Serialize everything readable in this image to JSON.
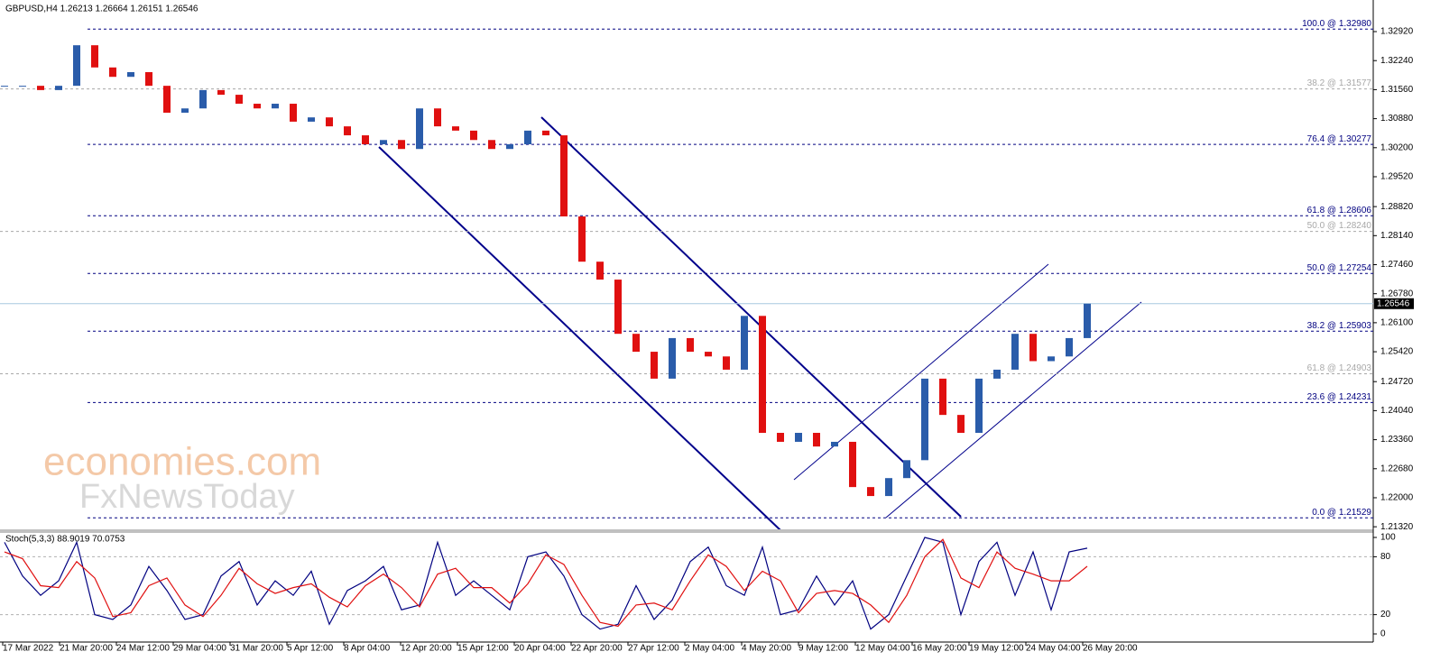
{
  "chart_data": {
    "type": "candlestick",
    "title": "GBPUSD,H4  1.26213 1.26664 1.26151 1.26546",
    "values": [
      1.3165,
      1.3165,
      1.3155,
      1.3165,
      1.326,
      1.3208,
      1.3186,
      1.3197,
      1.3165,
      1.3102,
      1.3112,
      1.3155,
      1.3144,
      1.3123,
      1.3112,
      1.3123,
      1.3081,
      1.3091,
      1.307,
      1.3049,
      1.3028,
      1.3038,
      1.3017,
      1.3112,
      1.307,
      1.306,
      1.3038,
      1.3017,
      1.3028,
      1.306,
      1.3049,
      1.2859,
      1.2753,
      1.2711,
      1.2584,
      1.2542,
      1.2479,
      1.2574,
      1.2542,
      1.2531,
      1.25,
      1.2626,
      1.2352,
      1.2331,
      1.2352,
      1.232,
      1.2331,
      1.2225,
      1.2204,
      1.2246,
      1.2288,
      1.2479,
      1.2394,
      1.2352,
      1.2479,
      1.25,
      1.2584,
      1.252,
      1.2531,
      1.2574,
      1.26546
    ],
    "up_color": "#2a5caa",
    "down_color": "#e01010",
    "ylim": [
      1.2126,
      1.3366
    ],
    "yticks": [
      {
        "value": 1.3292,
        "label": "1.32920"
      },
      {
        "value": 1.3224,
        "label": "1.32240"
      },
      {
        "value": 1.3156,
        "label": "1.31560"
      },
      {
        "value": 1.3088,
        "label": "1.30880"
      },
      {
        "value": 1.302,
        "label": "1.30200"
      },
      {
        "value": 1.2952,
        "label": "1.29520"
      },
      {
        "value": 1.2882,
        "label": "1.28820"
      },
      {
        "value": 1.2814,
        "label": "1.28140"
      },
      {
        "value": 1.2746,
        "label": "1.27460"
      },
      {
        "value": 1.2678,
        "label": "1.26780"
      },
      {
        "value": 1.261,
        "label": "1.26100"
      },
      {
        "value": 1.2542,
        "label": "1.25420"
      },
      {
        "value": 1.2472,
        "label": "1.24720"
      },
      {
        "value": 1.2404,
        "label": "1.24040"
      },
      {
        "value": 1.2336,
        "label": "1.23360"
      },
      {
        "value": 1.2268,
        "label": "1.22680"
      },
      {
        "value": 1.22,
        "label": "1.22000"
      },
      {
        "value": 1.2132,
        "label": "1.21320"
      }
    ],
    "current_price": 1.26546,
    "levels": [
      {
        "value": 1.3298,
        "label": "100.0 @ 1.32980",
        "color": "#000080"
      },
      {
        "value": 1.31577,
        "label": "38.2 @ 1.31577",
        "color": "#a8a8a8"
      },
      {
        "value": 1.30277,
        "label": "76.4 @ 1.30277",
        "color": "#000080"
      },
      {
        "value": 1.28606,
        "label": "61.8 @ 1.28606",
        "color": "#000080"
      },
      {
        "value": 1.2824,
        "label": "50.0 @ 1.28240",
        "color": "#a8a8a8"
      },
      {
        "value": 1.27254,
        "label": "50.0 @ 1.27254",
        "color": "#000080"
      },
      {
        "value": 1.25903,
        "label": "38.2 @ 1.25903",
        "color": "#000080"
      },
      {
        "value": 1.24903,
        "label": "61.8 @ 1.24903",
        "color": "#a8a8a8"
      },
      {
        "value": 1.24231,
        "label": "23.6 @ 1.24231",
        "color": "#000080"
      },
      {
        "value": 1.21529,
        "label": "0.0 @ 1.21529",
        "color": "#000080"
      }
    ],
    "x_labels": [
      "17 Mar 2022",
      "21 Mar 20:00",
      "24 Mar 12:00",
      "29 Mar 04:00",
      "31 Mar 20:00",
      "5 Apr 12:00",
      "8 Apr 04:00",
      "12 Apr 20:00",
      "15 Apr 12:00",
      "20 Apr 04:00",
      "22 Apr 20:00",
      "27 Apr 12:00",
      "2 May 04:00",
      "4 May 20:00",
      "9 May 12:00",
      "12 May 04:00",
      "16 May 20:00",
      "19 May 12:00",
      "24 May 04:00",
      "26 May 20:00"
    ],
    "watermark": [
      "economies.com",
      "FxNewsToday"
    ],
    "stoch": {
      "label": "Stoch(5,3,3) 88.9019 70.0753",
      "ylim": [
        0,
        100
      ],
      "yticks": [
        0,
        20,
        80,
        100
      ],
      "levels": [
        20,
        80
      ],
      "series": [
        {
          "name": "main",
          "color": "#000080",
          "values": [
            95,
            60,
            40,
            55,
            95,
            20,
            15,
            30,
            70,
            45,
            15,
            20,
            60,
            75,
            30,
            55,
            40,
            65,
            10,
            45,
            55,
            70,
            25,
            30,
            95,
            40,
            55,
            40,
            25,
            80,
            85,
            60,
            20,
            5,
            10,
            50,
            15,
            35,
            75,
            90,
            50,
            40,
            90,
            20,
            25,
            60,
            30,
            55,
            5,
            20,
            60,
            100,
            95,
            20,
            75,
            95,
            40,
            85,
            25,
            85,
            88.9019
          ]
        },
        {
          "name": "signal",
          "color": "#e01010",
          "values": [
            85,
            78,
            50,
            48,
            75,
            58,
            18,
            22,
            50,
            58,
            30,
            18,
            40,
            68,
            52,
            42,
            48,
            52,
            38,
            28,
            50,
            62,
            48,
            28,
            62,
            68,
            48,
            48,
            32,
            52,
            82,
            72,
            40,
            12,
            8,
            30,
            32,
            25,
            55,
            82,
            70,
            45,
            65,
            55,
            22,
            42,
            45,
            42,
            30,
            12,
            40,
            80,
            98,
            58,
            48,
            85,
            68,
            62,
            55,
            55,
            70.0753
          ]
        }
      ]
    }
  }
}
